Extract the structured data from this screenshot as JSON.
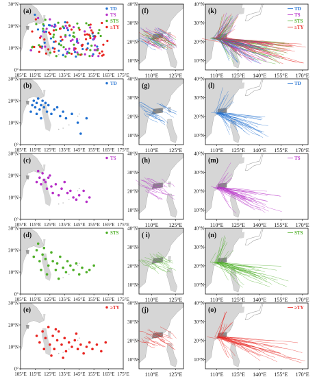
{
  "colors": {
    "TD": "#1f6fd0",
    "TS": "#b630c8",
    "STS": "#4cae25",
    "STY": "#e8231f",
    "land": "#d6d6d6",
    "landDark": "#8a8a8a",
    "axis": "#111111"
  },
  "col_left": {
    "xlim": [
      105,
      175
    ],
    "ylim": [
      0,
      30
    ],
    "xticks": [
      "105°E",
      "115°E",
      "125°E",
      "135°E",
      "145°E",
      "155°E",
      "165°E",
      "175°E"
    ],
    "yticks": [
      "0°",
      "10°N",
      "20°N",
      "30°N"
    ]
  },
  "col_mid": {
    "xticks": [
      "110°E",
      "125°E"
    ],
    "yticks": [
      "10°N",
      "20°N",
      "30°N",
      "40°N"
    ]
  },
  "col_right": {
    "xticks": [
      "110°E",
      "125°E",
      "140°E",
      "155°E",
      "170°E"
    ],
    "yticks": [
      "10°N",
      "20°N",
      "30°N",
      "40°N"
    ]
  },
  "legend_labels": {
    "TD": "TD",
    "TS": "TS",
    "STS": "STS",
    "STY": "≥TY"
  },
  "panels": [
    {
      "label": "(a)",
      "kind": "genesis",
      "cats": [
        "TD",
        "TS",
        "STS",
        "STY"
      ]
    },
    {
      "label": "(b)",
      "kind": "genesis",
      "cats": [
        "TD"
      ]
    },
    {
      "label": "(c)",
      "kind": "genesis",
      "cats": [
        "TS"
      ]
    },
    {
      "label": "(d)",
      "kind": "genesis",
      "cats": [
        "STS"
      ]
    },
    {
      "label": "(e)",
      "kind": "genesis",
      "cats": [
        "STY"
      ]
    },
    {
      "label": "(f)",
      "kind": "landfall",
      "cats": [
        "TD",
        "TS",
        "STS",
        "STY"
      ]
    },
    {
      "label": "(g)",
      "kind": "landfall",
      "cats": [
        "TD"
      ]
    },
    {
      "label": "(h)",
      "kind": "landfall",
      "cats": [
        "TS"
      ]
    },
    {
      "label": "( i)",
      "kind": "landfall",
      "cats": [
        "STS"
      ]
    },
    {
      "label": "(j)",
      "kind": "landfall",
      "cats": [
        "STY"
      ]
    },
    {
      "label": "(k)",
      "kind": "tracks",
      "cats": [
        "TD",
        "TS",
        "STS",
        "STY"
      ]
    },
    {
      "label": "(l)",
      "kind": "tracks",
      "cats": [
        "TD"
      ]
    },
    {
      "label": "(m)",
      "kind": "tracks",
      "cats": [
        "TS"
      ]
    },
    {
      "label": "(n)",
      "kind": "tracks",
      "cats": [
        "STS"
      ]
    },
    {
      "label": "(o)",
      "kind": "tracks",
      "cats": [
        "STY"
      ]
    }
  ],
  "chart_data": [
    {
      "type": "scatter",
      "title": "",
      "label": "(b)",
      "series": [
        {
          "name": "TD",
          "points": [
            [
              113,
              18
            ],
            [
              114,
              20
            ],
            [
              115,
              17
            ],
            [
              116,
              19
            ],
            [
              117,
              21
            ],
            [
              118,
              16
            ],
            [
              119,
              18
            ],
            [
              120,
              20
            ],
            [
              121,
              17
            ],
            [
              122,
              19
            ],
            [
              123,
              15
            ],
            [
              124,
              18
            ],
            [
              126,
              14
            ],
            [
              128,
              16
            ],
            [
              130,
              17
            ],
            [
              132,
              13
            ],
            [
              134,
              15
            ],
            [
              136,
              12
            ],
            [
              140,
              14
            ],
            [
              144,
              10
            ],
            [
              146,
              5
            ],
            [
              150,
              12
            ],
            [
              116,
              14
            ],
            [
              119,
              12
            ],
            [
              112,
              15
            ]
          ]
        }
      ],
      "xlim": [
        105,
        175
      ],
      "ylim": [
        0,
        30
      ]
    },
    {
      "type": "scatter",
      "title": "",
      "label": "(c)",
      "series": [
        {
          "name": "TS",
          "points": [
            [
              116,
              17
            ],
            [
              118,
              19
            ],
            [
              119,
              16
            ],
            [
              120,
              21
            ],
            [
              121,
              18
            ],
            [
              122,
              17
            ],
            [
              123,
              14
            ],
            [
              124,
              19
            ],
            [
              126,
              15
            ],
            [
              127,
              12
            ],
            [
              129,
              16
            ],
            [
              131,
              11
            ],
            [
              133,
              14
            ],
            [
              135,
              17
            ],
            [
              137,
              12
            ],
            [
              139,
              13
            ],
            [
              141,
              10
            ],
            [
              143,
              9
            ],
            [
              145,
              11
            ],
            [
              148,
              13
            ],
            [
              150,
              8
            ],
            [
              152,
              10
            ],
            [
              117,
              22
            ],
            [
              125,
              20
            ]
          ]
        }
      ],
      "xlim": [
        105,
        175
      ],
      "ylim": [
        0,
        30
      ]
    },
    {
      "type": "scatter",
      "title": "",
      "label": "(d)",
      "series": [
        {
          "name": "STS",
          "points": [
            [
              114,
              17
            ],
            [
              116,
              20
            ],
            [
              118,
              15
            ],
            [
              120,
              18
            ],
            [
              121,
              21
            ],
            [
              122,
              16
            ],
            [
              124,
              13
            ],
            [
              126,
              19
            ],
            [
              127,
              15
            ],
            [
              129,
              11
            ],
            [
              130,
              14
            ],
            [
              132,
              17
            ],
            [
              134,
              12
            ],
            [
              136,
              10
            ],
            [
              137,
              15
            ],
            [
              139,
              13
            ],
            [
              141,
              11
            ],
            [
              143,
              14
            ],
            [
              145,
              9
            ],
            [
              147,
              12
            ],
            [
              150,
              10
            ],
            [
              152,
              11
            ],
            [
              155,
              13
            ],
            [
              119,
              11
            ],
            [
              123,
              9
            ],
            [
              131,
              7
            ],
            [
              117,
              23
            ]
          ]
        }
      ],
      "xlim": [
        105,
        175
      ],
      "ylim": [
        0,
        30
      ]
    },
    {
      "type": "scatter",
      "title": "",
      "label": "(e)",
      "series": [
        {
          "name": "≥TY",
          "points": [
            [
              116,
              15
            ],
            [
              118,
              12
            ],
            [
              120,
              17
            ],
            [
              122,
              14
            ],
            [
              124,
              19
            ],
            [
              125,
              11
            ],
            [
              127,
              15
            ],
            [
              128,
              9
            ],
            [
              130,
              13
            ],
            [
              131,
              17
            ],
            [
              133,
              11
            ],
            [
              135,
              14
            ],
            [
              136,
              8
            ],
            [
              138,
              12
            ],
            [
              140,
              10
            ],
            [
              142,
              13
            ],
            [
              144,
              9
            ],
            [
              146,
              11
            ],
            [
              148,
              7
            ],
            [
              150,
              10
            ],
            [
              152,
              12
            ],
            [
              154,
              9
            ],
            [
              157,
              11
            ],
            [
              160,
              8
            ],
            [
              163,
              12
            ],
            [
              126,
              6
            ],
            [
              134,
              5
            ],
            [
              121,
              9
            ],
            [
              129,
              18
            ],
            [
              143,
              16
            ]
          ]
        }
      ],
      "xlim": [
        105,
        175
      ],
      "ylim": [
        0,
        30
      ]
    }
  ]
}
